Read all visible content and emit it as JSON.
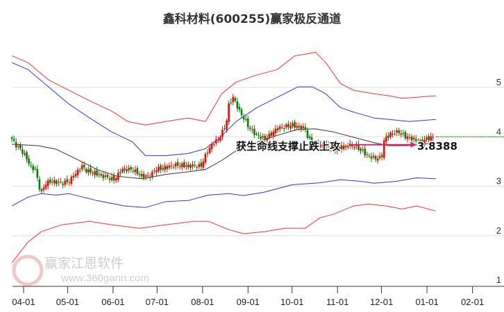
{
  "chart_data": {
    "type": "candlestick",
    "title": "鑫科材料(600255)赢家极反通道",
    "xlabel": "",
    "ylabel": "",
    "ylim": [
      1,
      5.75
    ],
    "yticks": [
      "1",
      "2",
      "3",
      "4",
      "5"
    ],
    "xticks": [
      {
        "label": "04-01",
        "day": 0
      },
      {
        "label": "05-01",
        "day": 30
      },
      {
        "label": "06-01",
        "day": 61
      },
      {
        "label": "07-01",
        "day": 91
      },
      {
        "label": "08-01",
        "day": 122
      },
      {
        "label": "09-01",
        "day": 153
      },
      {
        "label": "10-01",
        "day": 183
      },
      {
        "label": "11-01",
        "day": 214
      },
      {
        "label": "12-01",
        "day": 244
      },
      {
        "label": "01-01",
        "day": 275
      },
      {
        "label": "02-01",
        "day": 306
      }
    ],
    "grid": true,
    "close": [
      [
        -8,
        3.96
      ],
      [
        -5,
        3.82
      ],
      [
        -2,
        3.75
      ],
      [
        2,
        3.57
      ],
      [
        5,
        3.38
      ],
      [
        8,
        3.34
      ],
      [
        10,
        3.06
      ],
      [
        12,
        2.85
      ],
      [
        15,
        3.06
      ],
      [
        19,
        3.1
      ],
      [
        26,
        3.06
      ],
      [
        31,
        3.1
      ],
      [
        36,
        3.27
      ],
      [
        40,
        3.41
      ],
      [
        43,
        3.31
      ],
      [
        48,
        3.27
      ],
      [
        55,
        3.2
      ],
      [
        62,
        3.13
      ],
      [
        67,
        3.34
      ],
      [
        74,
        3.34
      ],
      [
        81,
        3.2
      ],
      [
        86,
        3.2
      ],
      [
        90,
        3.34
      ],
      [
        97,
        3.38
      ],
      [
        104,
        3.43
      ],
      [
        112,
        3.41
      ],
      [
        121,
        3.41
      ],
      [
        124,
        3.62
      ],
      [
        128,
        3.83
      ],
      [
        133,
        3.96
      ],
      [
        138,
        4.24
      ],
      [
        140,
        4.66
      ],
      [
        143,
        4.8
      ],
      [
        147,
        4.52
      ],
      [
        150,
        4.38
      ],
      [
        154,
        4.17
      ],
      [
        159,
        4.03
      ],
      [
        164,
        3.96
      ],
      [
        168,
        4.03
      ],
      [
        173,
        4.17
      ],
      [
        178,
        4.2
      ],
      [
        183,
        4.24
      ],
      [
        187,
        4.2
      ],
      [
        192,
        4.17
      ],
      [
        194,
        3.96
      ],
      [
        199,
        3.82
      ],
      [
        206,
        3.82
      ],
      [
        213,
        3.75
      ],
      [
        221,
        3.82
      ],
      [
        225,
        3.82
      ],
      [
        230,
        3.75
      ],
      [
        234,
        3.62
      ],
      [
        239,
        3.57
      ],
      [
        244,
        3.57
      ],
      [
        246,
        3.96
      ],
      [
        251,
        4.07
      ],
      [
        256,
        4.1
      ],
      [
        261,
        3.99
      ],
      [
        265,
        3.96
      ],
      [
        270,
        3.89
      ],
      [
        275,
        3.96
      ],
      [
        280,
        4.0
      ]
    ],
    "series": [
      {
        "name": "upper-outer",
        "color": "#ff3030",
        "points": [
          [
            -8,
            5.64
          ],
          [
            3,
            5.5
          ],
          [
            17,
            5.15
          ],
          [
            31,
            4.94
          ],
          [
            45,
            4.73
          ],
          [
            60,
            4.52
          ],
          [
            71,
            4.31
          ],
          [
            83,
            4.24
          ],
          [
            97,
            4.31
          ],
          [
            112,
            4.38
          ],
          [
            124,
            4.31
          ],
          [
            135,
            4.87
          ],
          [
            145,
            5.11
          ],
          [
            159,
            5.25
          ],
          [
            173,
            5.36
          ],
          [
            185,
            5.64
          ],
          [
            192,
            5.67
          ],
          [
            199,
            5.71
          ],
          [
            206,
            5.5
          ],
          [
            216,
            5.08
          ],
          [
            225,
            4.94
          ],
          [
            239,
            4.87
          ],
          [
            249,
            4.83
          ],
          [
            258,
            4.78
          ],
          [
            268,
            4.8
          ],
          [
            281,
            4.83
          ]
        ]
      },
      {
        "name": "upper-inner",
        "color": "#3030ff",
        "points": [
          [
            -8,
            5.5
          ],
          [
            3,
            5.36
          ],
          [
            17,
            5.01
          ],
          [
            31,
            4.66
          ],
          [
            45,
            4.38
          ],
          [
            60,
            4.1
          ],
          [
            74,
            3.9
          ],
          [
            83,
            3.62
          ],
          [
            97,
            3.62
          ],
          [
            112,
            3.66
          ],
          [
            124,
            3.76
          ],
          [
            133,
            3.96
          ],
          [
            145,
            4.31
          ],
          [
            159,
            4.59
          ],
          [
            173,
            4.8
          ],
          [
            187,
            5.01
          ],
          [
            197,
            5.01
          ],
          [
            206,
            4.87
          ],
          [
            216,
            4.59
          ],
          [
            225,
            4.5
          ],
          [
            239,
            4.38
          ],
          [
            249,
            4.35
          ],
          [
            263,
            4.31
          ],
          [
            281,
            4.35
          ]
        ]
      },
      {
        "name": "lifeline",
        "color": "#333333",
        "points": [
          [
            -8,
            3.85
          ],
          [
            10,
            3.82
          ],
          [
            22,
            3.75
          ],
          [
            36,
            3.55
          ],
          [
            50,
            3.34
          ],
          [
            64,
            3.2
          ],
          [
            81,
            3.15
          ],
          [
            97,
            3.24
          ],
          [
            112,
            3.29
          ],
          [
            124,
            3.34
          ],
          [
            135,
            3.52
          ],
          [
            147,
            3.76
          ],
          [
            159,
            3.89
          ],
          [
            173,
            4.03
          ],
          [
            187,
            4.15
          ],
          [
            199,
            4.16
          ],
          [
            211,
            4.1
          ],
          [
            225,
            3.99
          ],
          [
            239,
            3.88
          ],
          [
            249,
            3.82
          ],
          [
            261,
            3.82
          ],
          [
            277,
            3.86
          ]
        ]
      },
      {
        "name": "lower-inner",
        "color": "#3030ff",
        "points": [
          [
            -8,
            2.6
          ],
          [
            3,
            2.78
          ],
          [
            12,
            2.85
          ],
          [
            22,
            2.82
          ],
          [
            31,
            2.85
          ],
          [
            50,
            2.71
          ],
          [
            69,
            2.6
          ],
          [
            83,
            2.57
          ],
          [
            97,
            2.69
          ],
          [
            112,
            2.71
          ],
          [
            126,
            2.82
          ],
          [
            140,
            2.85
          ],
          [
            150,
            2.81
          ],
          [
            164,
            2.88
          ],
          [
            183,
            3.03
          ],
          [
            202,
            3.07
          ],
          [
            216,
            3.13
          ],
          [
            230,
            3.1
          ],
          [
            239,
            3.06
          ],
          [
            254,
            3.1
          ],
          [
            268,
            3.17
          ],
          [
            281,
            3.15
          ]
        ]
      },
      {
        "name": "lower-outer",
        "color": "#ff3030",
        "points": [
          [
            -8,
            1.45
          ],
          [
            3,
            1.87
          ],
          [
            12,
            2.08
          ],
          [
            26,
            2.22
          ],
          [
            45,
            2.29
          ],
          [
            60,
            2.22
          ],
          [
            79,
            2.15
          ],
          [
            97,
            2.22
          ],
          [
            116,
            2.29
          ],
          [
            126,
            2.29
          ],
          [
            140,
            2.12
          ],
          [
            150,
            2.04
          ],
          [
            164,
            2.08
          ],
          [
            178,
            2.15
          ],
          [
            192,
            2.15
          ],
          [
            202,
            2.36
          ],
          [
            211,
            2.43
          ],
          [
            225,
            2.6
          ],
          [
            235,
            2.64
          ],
          [
            247,
            2.6
          ],
          [
            258,
            2.54
          ],
          [
            268,
            2.6
          ],
          [
            281,
            2.5
          ]
        ]
      }
    ],
    "last_price_line": 4.0,
    "annotation": {
      "text": "获生命线支撑止跌上攻",
      "value": "3.8388",
      "price": 3.8388,
      "arrow_from_day": 223,
      "arrow_to_day": 268
    },
    "colors": {
      "up": "#ff0000",
      "down": "#008000",
      "arrow": "#e0206a"
    }
  },
  "watermark": {
    "brand": "赢家江恩软件",
    "url": "www.360gann.com",
    "seal": "江赢恩家"
  }
}
